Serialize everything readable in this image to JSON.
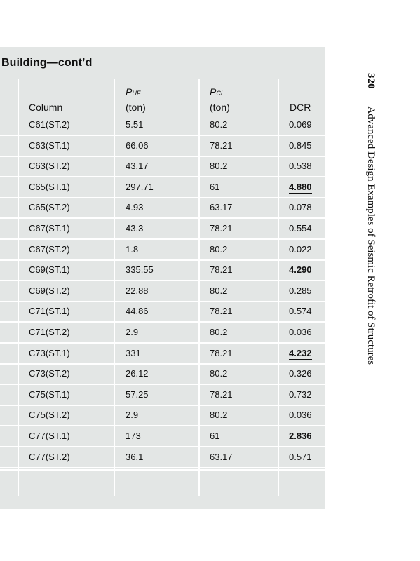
{
  "header": {
    "title": "Building—cont’d"
  },
  "columns": {
    "column": "Column",
    "puf_symbol": "P",
    "puf_sub": "UF",
    "puf_unit": "(ton)",
    "pcl_symbol": "P",
    "pcl_sub": "CL",
    "pcl_unit": "(ton)",
    "dcr": "DCR"
  },
  "rows": [
    {
      "column": "C61(ST.2)",
      "puf": "5.51",
      "pcl": "80.2",
      "dcr": "0.069",
      "bold": false
    },
    {
      "column": "C63(ST.1)",
      "puf": "66.06",
      "pcl": "78.21",
      "dcr": "0.845",
      "bold": false
    },
    {
      "column": "C63(ST.2)",
      "puf": "43.17",
      "pcl": "80.2",
      "dcr": "0.538",
      "bold": false
    },
    {
      "column": "C65(ST.1)",
      "puf": "297.71",
      "pcl": "61",
      "dcr": "4.880",
      "bold": true
    },
    {
      "column": "C65(ST.2)",
      "puf": "4.93",
      "pcl": "63.17",
      "dcr": "0.078",
      "bold": false
    },
    {
      "column": "C67(ST.1)",
      "puf": "43.3",
      "pcl": "78.21",
      "dcr": "0.554",
      "bold": false
    },
    {
      "column": "C67(ST.2)",
      "puf": "1.8",
      "pcl": "80.2",
      "dcr": "0.022",
      "bold": false
    },
    {
      "column": "C69(ST.1)",
      "puf": "335.55",
      "pcl": "78.21",
      "dcr": "4.290",
      "bold": true
    },
    {
      "column": "C69(ST.2)",
      "puf": "22.88",
      "pcl": "80.2",
      "dcr": "0.285",
      "bold": false
    },
    {
      "column": "C71(ST.1)",
      "puf": "44.86",
      "pcl": "78.21",
      "dcr": "0.574",
      "bold": false
    },
    {
      "column": "C71(ST.2)",
      "puf": "2.9",
      "pcl": "80.2",
      "dcr": "0.036",
      "bold": false
    },
    {
      "column": "C73(ST.1)",
      "puf": "331",
      "pcl": "78.21",
      "dcr": "4.232",
      "bold": true
    },
    {
      "column": "C73(ST.2)",
      "puf": "26.12",
      "pcl": "80.2",
      "dcr": "0.326",
      "bold": false
    },
    {
      "column": "C75(ST.1)",
      "puf": "57.25",
      "pcl": "78.21",
      "dcr": "0.732",
      "bold": false
    },
    {
      "column": "C75(ST.2)",
      "puf": "2.9",
      "pcl": "80.2",
      "dcr": "0.036",
      "bold": false
    },
    {
      "column": "C77(ST.1)",
      "puf": "173",
      "pcl": "61",
      "dcr": "2.836",
      "bold": true
    },
    {
      "column": "C77(ST.2)",
      "puf": "36.1",
      "pcl": "63.17",
      "dcr": "0.571",
      "bold": false
    }
  ],
  "side": {
    "page_number": "320",
    "book_title": "Advanced Design Examples of Seismic Retrofit of Structures"
  },
  "colors": {
    "table_fill": "#e3e6e5",
    "separator": "#ffffff"
  }
}
